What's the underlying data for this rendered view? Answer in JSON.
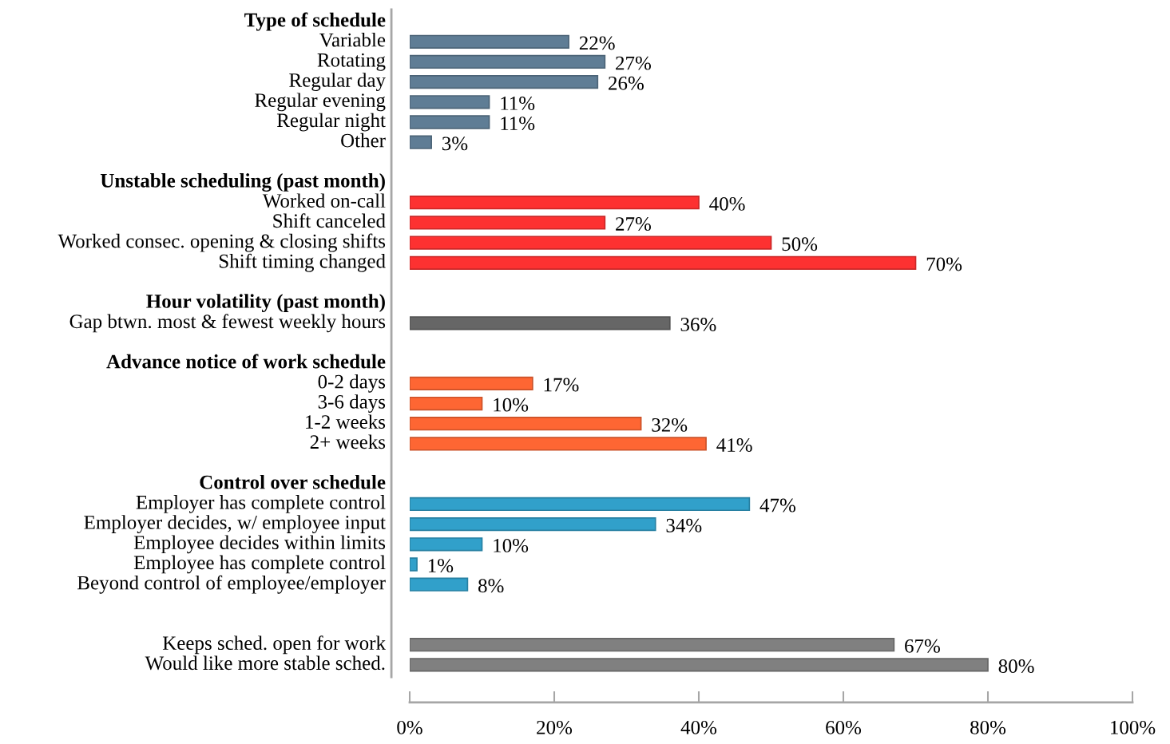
{
  "chart_data": {
    "type": "bar",
    "orientation": "horizontal",
    "categories": [
      "Type of schedule",
      "Variable",
      "Rotating",
      "Regular day",
      "Regular evening",
      "Regular night",
      "Other",
      null,
      "Unstable scheduling (past month)",
      "Worked on-call",
      "Shift canceled",
      "Worked consec. opening & closing shifts",
      "Shift timing changed",
      null,
      "Hour volatility (past month)",
      "Gap btwn. most & fewest weekly hours",
      null,
      "Advance notice of work schedule",
      "0-2 days",
      "3-6 days",
      "1-2 weeks",
      "2+ weeks",
      null,
      "Control over schedule",
      "Employer has complete control",
      "Employer decides, w/ employee input",
      "Employee decides within limits",
      "Employee has complete control",
      "Beyond control of employee/employer",
      null,
      null,
      "Keeps sched. open for work",
      "Would like more stable sched."
    ],
    "values": [
      null,
      22,
      27,
      26,
      11,
      11,
      3,
      null,
      null,
      40,
      27,
      50,
      70,
      null,
      null,
      36,
      null,
      null,
      17,
      10,
      32,
      41,
      null,
      null,
      47,
      34,
      10,
      1,
      8,
      null,
      null,
      67,
      80
    ],
    "colors": [
      null,
      "#5f7d95",
      "#5f7d95",
      "#5f7d95",
      "#5f7d95",
      "#5f7d95",
      "#5f7d95",
      null,
      null,
      "#fd3131",
      "#fd3131",
      "#fd3131",
      "#fd3131",
      null,
      null,
      "#666666",
      null,
      null,
      "#fe6633",
      "#fe6633",
      "#fe6633",
      "#fe6633",
      null,
      null,
      "#31a0ca",
      "#31a0ca",
      "#31a0ca",
      "#31a0ca",
      "#31a0ca",
      null,
      null,
      "#808080",
      "#808080"
    ],
    "value_labels": [
      null,
      "22%",
      "27%",
      "26%",
      "11%",
      "11%",
      "3%",
      null,
      null,
      "40%",
      "27%",
      "50%",
      "70%",
      null,
      null,
      "36%",
      null,
      null,
      "17%",
      "10%",
      "32%",
      "41%",
      null,
      null,
      "47%",
      "34%",
      "10%",
      "1%",
      "8%",
      null,
      null,
      "67%",
      "80%"
    ],
    "xlim": [
      0,
      100
    ],
    "xticks": [
      {
        "value": 0,
        "label": "0%"
      },
      {
        "value": 20,
        "label": "20%"
      },
      {
        "value": 40,
        "label": "40%"
      },
      {
        "value": 60,
        "label": "60%"
      },
      {
        "value": 80,
        "label": "80%"
      },
      {
        "value": 100,
        "label": "100%"
      }
    ],
    "grid": false,
    "legend": false
  }
}
